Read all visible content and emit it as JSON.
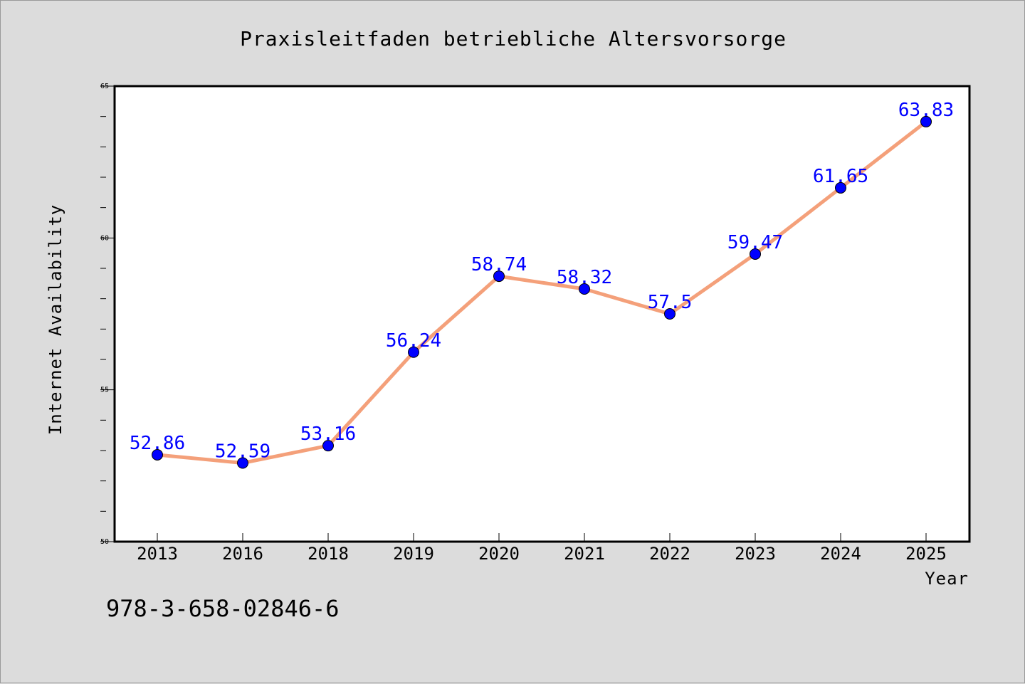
{
  "chart_data": {
    "type": "line",
    "title": "Praxisleitfaden betriebliche Altersvorsorge",
    "xlabel": "Year",
    "ylabel": "Internet Availability",
    "categories": [
      "2013",
      "2016",
      "2018",
      "2019",
      "2020",
      "2021",
      "2022",
      "2023",
      "2024",
      "2025"
    ],
    "series": [
      {
        "values": [
          52.86,
          52.59,
          53.16,
          56.24,
          58.74,
          58.32,
          57.5,
          59.47,
          61.65,
          63.83
        ],
        "labels": [
          "52.86",
          "52.59",
          "53.16",
          "56.24",
          "58.74",
          "58.32",
          "57.5",
          "59.47",
          "61.65",
          "63.83"
        ],
        "line_color": "#f4a07a",
        "marker_color": "#0000ff"
      }
    ],
    "ylim": [
      50,
      65
    ],
    "yticks": [
      "50",
      "55",
      "60",
      "65"
    ],
    "grid": false,
    "background": "#ffffff",
    "page_background": "#dcdcdc"
  },
  "footer": {
    "isbn": "978-3-658-02846-6"
  }
}
